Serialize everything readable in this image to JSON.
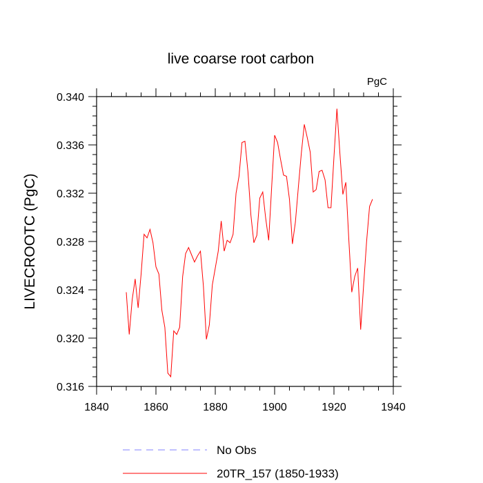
{
  "chart_data": {
    "type": "line",
    "title": "live coarse root carbon",
    "units_label": "PgC",
    "xlabel": "",
    "ylabel": "LIVECROOTC  (PgC)",
    "xlim": [
      1840,
      1940
    ],
    "ylim": [
      0.316,
      0.34
    ],
    "x_ticks": [
      1840,
      1860,
      1880,
      1900,
      1920,
      1940
    ],
    "x_tick_labels": [
      "1840",
      "1860",
      "1880",
      "1900",
      "1920",
      "1940"
    ],
    "y_ticks": [
      0.316,
      0.32,
      0.324,
      0.328,
      0.332,
      0.336,
      0.34
    ],
    "y_tick_labels": [
      "0.316",
      "0.320",
      "0.324",
      "0.328",
      "0.332",
      "0.336",
      "0.340"
    ],
    "grid": false,
    "legend_position": "bottom",
    "series": [
      {
        "name": "No Obs",
        "color": "#8080ff",
        "dash": true,
        "x": [],
        "values": []
      },
      {
        "name": "20TR_157 (1850-1933)",
        "color": "#ff0000",
        "dash": false,
        "x": [
          1850,
          1851,
          1852,
          1853,
          1854,
          1855,
          1856,
          1857,
          1858,
          1859,
          1860,
          1861,
          1862,
          1863,
          1864,
          1865,
          1866,
          1867,
          1868,
          1869,
          1870,
          1871,
          1872,
          1873,
          1874,
          1875,
          1876,
          1877,
          1878,
          1879,
          1880,
          1881,
          1882,
          1883,
          1884,
          1885,
          1886,
          1887,
          1888,
          1889,
          1890,
          1891,
          1892,
          1893,
          1894,
          1895,
          1896,
          1897,
          1898,
          1899,
          1900,
          1901,
          1902,
          1903,
          1904,
          1905,
          1906,
          1907,
          1908,
          1909,
          1910,
          1911,
          1912,
          1913,
          1914,
          1915,
          1916,
          1917,
          1918,
          1919,
          1920,
          1921,
          1922,
          1923,
          1924,
          1925,
          1926,
          1927,
          1928,
          1929,
          1930,
          1931,
          1932,
          1933
        ],
        "values": [
          0.3238,
          0.3203,
          0.3232,
          0.3249,
          0.3225,
          0.3253,
          0.3286,
          0.3283,
          0.329,
          0.3279,
          0.3259,
          0.3253,
          0.3223,
          0.3209,
          0.3171,
          0.3168,
          0.3206,
          0.3203,
          0.3209,
          0.3251,
          0.327,
          0.3275,
          0.3269,
          0.3263,
          0.3268,
          0.3272,
          0.3243,
          0.3199,
          0.3211,
          0.3244,
          0.3258,
          0.3272,
          0.3297,
          0.3272,
          0.3281,
          0.3279,
          0.3286,
          0.332,
          0.3334,
          0.3362,
          0.3363,
          0.3338,
          0.3302,
          0.3279,
          0.3285,
          0.3316,
          0.3321,
          0.3299,
          0.3281,
          0.3325,
          0.3368,
          0.3362,
          0.3348,
          0.3335,
          0.3334,
          0.3315,
          0.3278,
          0.3296,
          0.3325,
          0.3353,
          0.3377,
          0.3366,
          0.3354,
          0.3321,
          0.3323,
          0.3338,
          0.3339,
          0.3331,
          0.3308,
          0.3308,
          0.335,
          0.339,
          0.3353,
          0.3319,
          0.3329,
          0.3282,
          0.3238,
          0.3251,
          0.3258,
          0.3207,
          0.3244,
          0.328,
          0.3309,
          0.3315
        ]
      }
    ]
  }
}
